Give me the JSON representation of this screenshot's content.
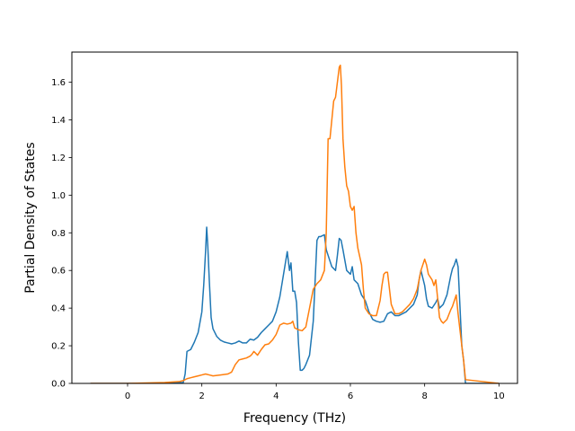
{
  "chart_data": {
    "type": "line",
    "xlabel": "Frequency (THz)",
    "ylabel": "Partial Density of States",
    "xlim": [
      -1.5,
      10.5
    ],
    "ylim": [
      0,
      1.76
    ],
    "xticks": [
      0,
      2,
      4,
      6,
      8,
      10
    ],
    "yticks": [
      0.0,
      0.2,
      0.4,
      0.6,
      0.8,
      1.0,
      1.2,
      1.4,
      1.6
    ],
    "grid": false,
    "series": [
      {
        "color": "#1f77b4",
        "x": [
          -1.0,
          0.0,
          1.0,
          1.5,
          1.55,
          1.6,
          1.7,
          1.8,
          1.9,
          2.0,
          2.05,
          2.1,
          2.13,
          2.16,
          2.2,
          2.25,
          2.3,
          2.4,
          2.5,
          2.6,
          2.7,
          2.8,
          2.9,
          3.0,
          3.1,
          3.2,
          3.3,
          3.4,
          3.5,
          3.6,
          3.7,
          3.8,
          3.9,
          4.0,
          4.1,
          4.2,
          4.3,
          4.33,
          4.36,
          4.4,
          4.45,
          4.5,
          4.55,
          4.6,
          4.65,
          4.7,
          4.75,
          4.8,
          4.9,
          5.0,
          5.1,
          5.15,
          5.2,
          5.3,
          5.35,
          5.4,
          5.5,
          5.6,
          5.65,
          5.7,
          5.75,
          5.8,
          5.9,
          6.0,
          6.05,
          6.1,
          6.2,
          6.3,
          6.4,
          6.5,
          6.6,
          6.7,
          6.8,
          6.9,
          7.0,
          7.1,
          7.2,
          7.3,
          7.4,
          7.5,
          7.6,
          7.7,
          7.8,
          7.85,
          7.9,
          8.0,
          8.05,
          8.1,
          8.2,
          8.3,
          8.35,
          8.4,
          8.5,
          8.6,
          8.7,
          8.75,
          8.8,
          8.85,
          8.9,
          9.0,
          9.05,
          9.1,
          10.0
        ],
        "y": [
          0.0,
          0.0,
          0.0,
          0.005,
          0.05,
          0.17,
          0.18,
          0.22,
          0.27,
          0.38,
          0.52,
          0.7,
          0.83,
          0.73,
          0.55,
          0.35,
          0.29,
          0.25,
          0.23,
          0.22,
          0.215,
          0.21,
          0.215,
          0.225,
          0.215,
          0.215,
          0.235,
          0.23,
          0.245,
          0.27,
          0.29,
          0.31,
          0.33,
          0.38,
          0.46,
          0.58,
          0.7,
          0.65,
          0.6,
          0.64,
          0.49,
          0.49,
          0.43,
          0.22,
          0.07,
          0.07,
          0.08,
          0.1,
          0.15,
          0.33,
          0.76,
          0.78,
          0.78,
          0.79,
          0.71,
          0.68,
          0.62,
          0.6,
          0.68,
          0.77,
          0.76,
          0.71,
          0.6,
          0.58,
          0.62,
          0.55,
          0.53,
          0.47,
          0.44,
          0.38,
          0.34,
          0.33,
          0.325,
          0.33,
          0.37,
          0.38,
          0.36,
          0.36,
          0.37,
          0.38,
          0.4,
          0.42,
          0.47,
          0.55,
          0.6,
          0.52,
          0.45,
          0.41,
          0.4,
          0.43,
          0.45,
          0.4,
          0.42,
          0.47,
          0.57,
          0.61,
          0.63,
          0.66,
          0.62,
          0.2,
          0.12,
          0.0,
          0.0
        ]
      },
      {
        "color": "#ff7f0e",
        "x": [
          -1.0,
          0.0,
          1.0,
          1.4,
          1.5,
          1.6,
          1.7,
          1.8,
          1.9,
          2.0,
          2.1,
          2.2,
          2.3,
          2.5,
          2.7,
          2.8,
          2.9,
          3.0,
          3.1,
          3.2,
          3.3,
          3.35,
          3.4,
          3.5,
          3.6,
          3.7,
          3.8,
          3.9,
          4.0,
          4.1,
          4.2,
          4.3,
          4.4,
          4.45,
          4.5,
          4.6,
          4.7,
          4.8,
          4.9,
          5.0,
          5.1,
          5.2,
          5.3,
          5.35,
          5.4,
          5.45,
          5.5,
          5.55,
          5.6,
          5.65,
          5.7,
          5.73,
          5.76,
          5.8,
          5.85,
          5.9,
          5.95,
          6.0,
          6.05,
          6.1,
          6.15,
          6.2,
          6.3,
          6.35,
          6.4,
          6.5,
          6.6,
          6.7,
          6.8,
          6.85,
          6.9,
          6.95,
          7.0,
          7.1,
          7.2,
          7.3,
          7.4,
          7.5,
          7.6,
          7.7,
          7.8,
          7.9,
          8.0,
          8.05,
          8.1,
          8.2,
          8.25,
          8.3,
          8.4,
          8.45,
          8.5,
          8.6,
          8.7,
          8.75,
          8.8,
          8.85,
          8.9,
          9.0,
          9.05,
          9.1,
          10.0
        ],
        "y": [
          0.0,
          0.0,
          0.005,
          0.01,
          0.015,
          0.025,
          0.03,
          0.035,
          0.04,
          0.045,
          0.05,
          0.045,
          0.04,
          0.045,
          0.05,
          0.06,
          0.1,
          0.125,
          0.13,
          0.135,
          0.145,
          0.155,
          0.17,
          0.15,
          0.18,
          0.205,
          0.21,
          0.23,
          0.26,
          0.31,
          0.32,
          0.315,
          0.32,
          0.33,
          0.295,
          0.285,
          0.28,
          0.3,
          0.4,
          0.5,
          0.53,
          0.55,
          0.6,
          0.8,
          1.3,
          1.3,
          1.4,
          1.5,
          1.52,
          1.6,
          1.68,
          1.69,
          1.58,
          1.3,
          1.15,
          1.05,
          1.02,
          0.94,
          0.92,
          0.94,
          0.8,
          0.72,
          0.63,
          0.5,
          0.4,
          0.37,
          0.36,
          0.36,
          0.44,
          0.52,
          0.58,
          0.59,
          0.59,
          0.42,
          0.37,
          0.37,
          0.38,
          0.4,
          0.42,
          0.45,
          0.5,
          0.6,
          0.66,
          0.63,
          0.58,
          0.55,
          0.52,
          0.55,
          0.35,
          0.33,
          0.32,
          0.34,
          0.39,
          0.41,
          0.44,
          0.47,
          0.37,
          0.2,
          0.12,
          0.02,
          0.0
        ]
      }
    ]
  }
}
